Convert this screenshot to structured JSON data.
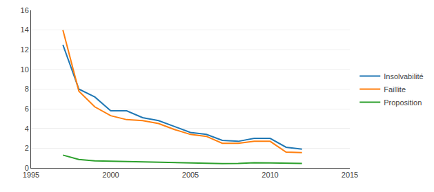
{
  "chart_data": {
    "type": "line",
    "x": [
      1997,
      1998,
      1999,
      2000,
      2001,
      2002,
      2003,
      2004,
      2005,
      2006,
      2007,
      2008,
      2009,
      2010,
      2011,
      2012
    ],
    "series": [
      {
        "name": "Insolvabilité",
        "values": [
          12.5,
          8.0,
          7.2,
          5.8,
          5.8,
          5.1,
          4.8,
          4.2,
          3.6,
          3.4,
          2.8,
          2.7,
          3.0,
          3.0,
          2.1,
          1.9
        ]
      },
      {
        "name": "Faillite",
        "values": [
          14.0,
          7.8,
          6.2,
          5.3,
          4.9,
          4.8,
          4.5,
          3.9,
          3.4,
          3.2,
          2.5,
          2.5,
          2.7,
          2.7,
          1.6,
          1.55
        ]
      },
      {
        "name": "Proposition",
        "values": [
          1.3,
          0.85,
          0.72,
          0.68,
          0.63,
          0.6,
          0.57,
          0.53,
          0.48,
          0.46,
          0.43,
          0.46,
          0.53,
          0.5,
          0.48,
          0.46
        ]
      }
    ],
    "xlim": [
      1995,
      2015
    ],
    "xticks": [
      1995,
      2000,
      2005,
      2010,
      2015
    ],
    "ylim": [
      0,
      16
    ],
    "yticks": [
      0,
      2,
      4,
      6,
      8,
      10,
      12,
      14,
      16
    ],
    "grid": "y",
    "legend": "right"
  }
}
